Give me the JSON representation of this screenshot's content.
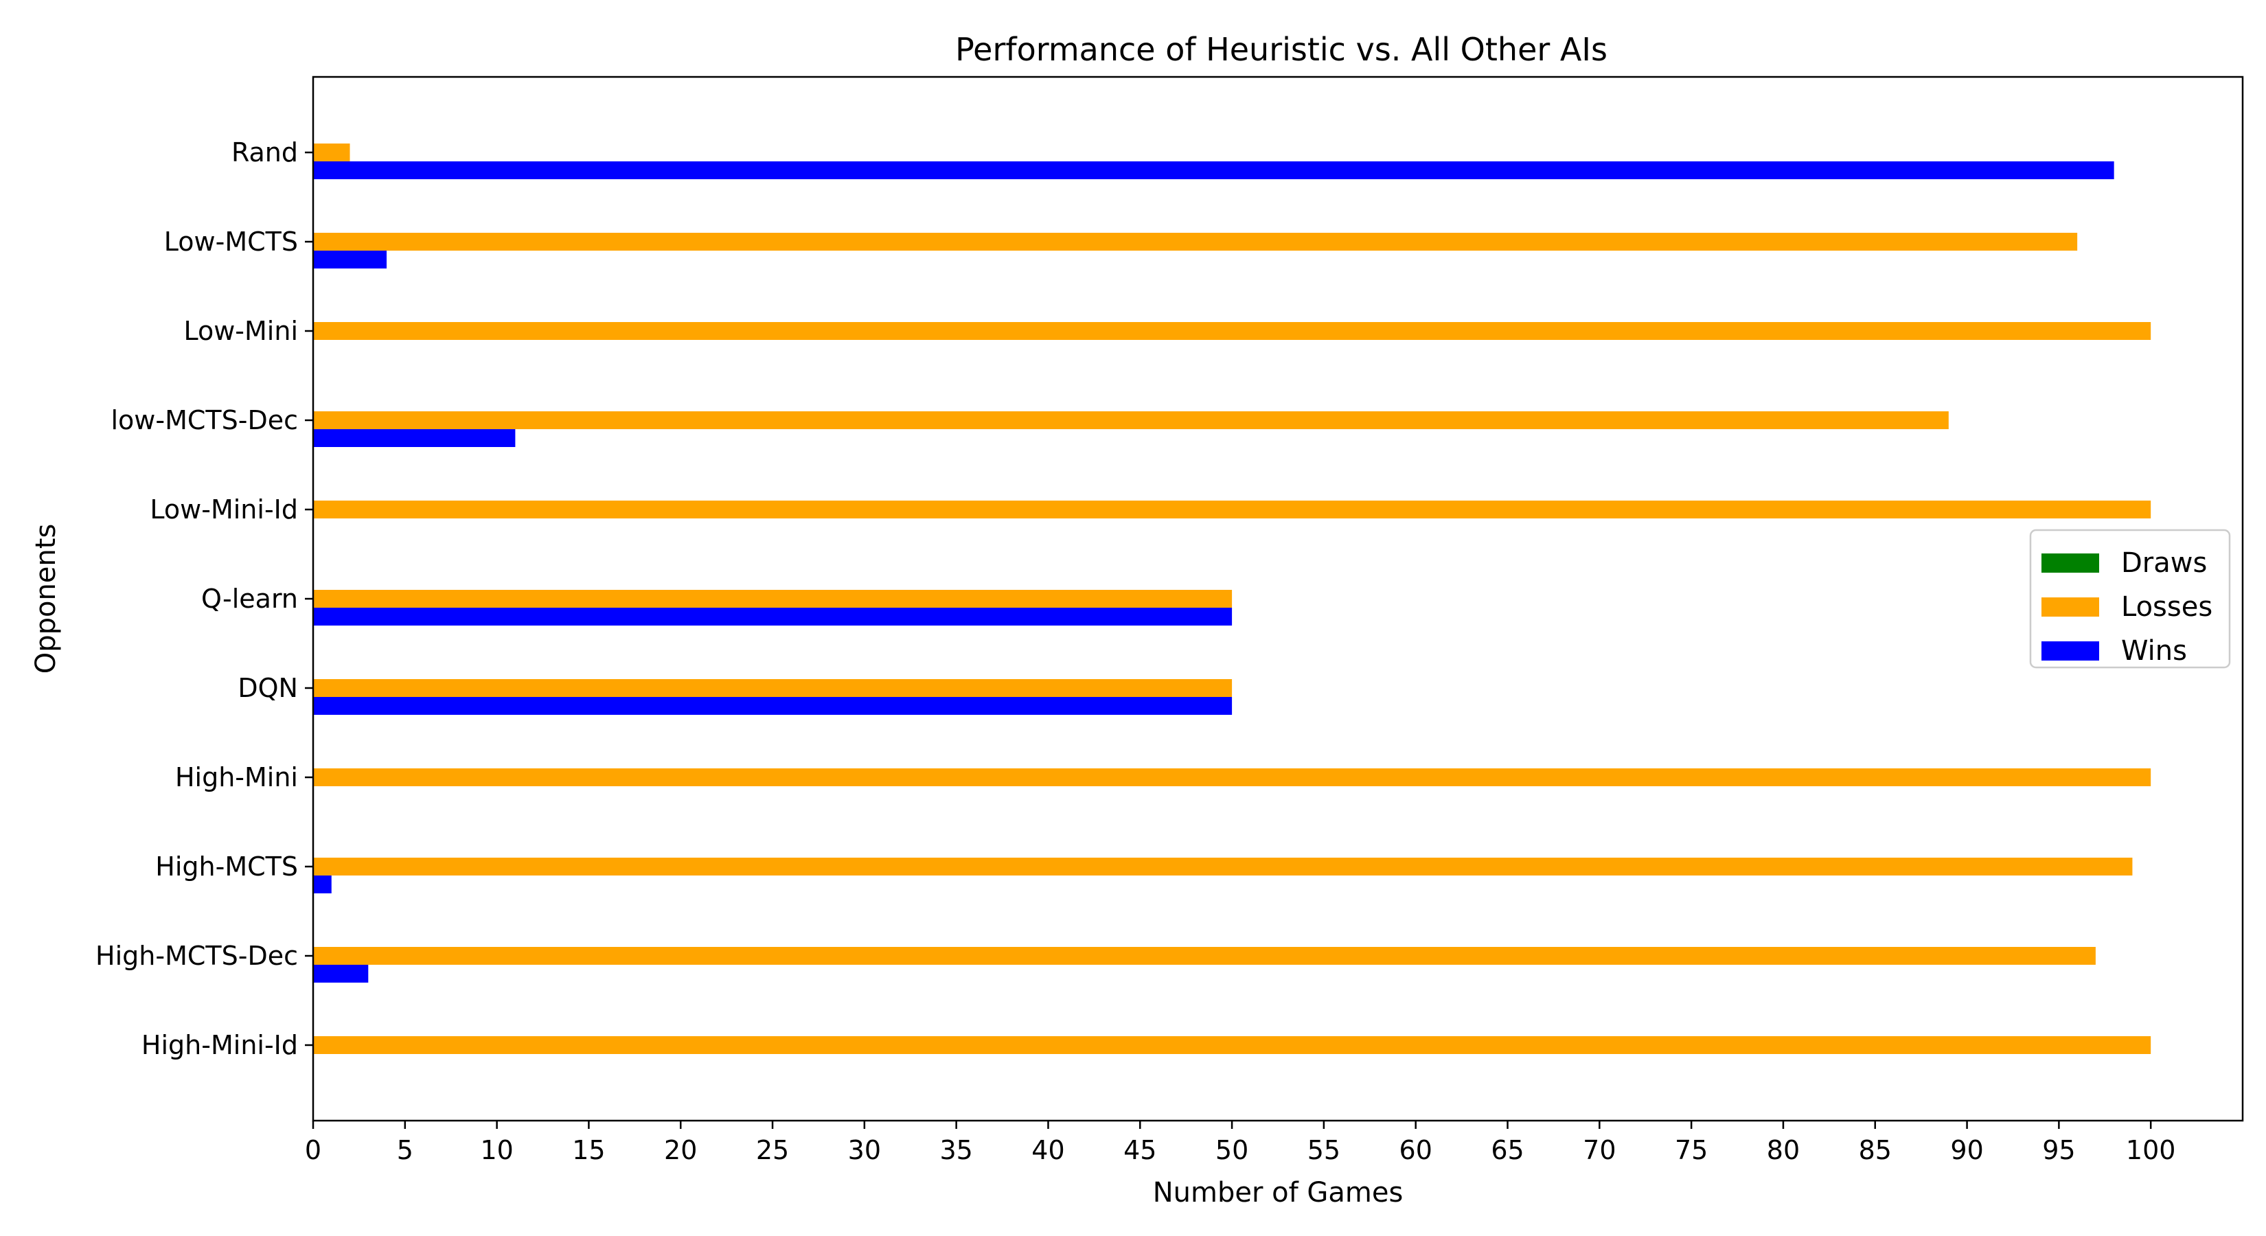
{
  "chart_data": {
    "type": "bar",
    "orientation": "horizontal",
    "title": "Performance of Heuristic vs. All Other AIs",
    "xlabel": "Number of Games",
    "ylabel": "Opponents",
    "categories": [
      "Rand",
      "Low-MCTS",
      "Low-Mini",
      "low-MCTS-Dec",
      "Low-Mini-Id",
      "Q-learn",
      "DQN",
      "High-Mini",
      "High-MCTS",
      "High-MCTS-Dec",
      "High-Mini-Id"
    ],
    "xlim": [
      0,
      105
    ],
    "xticks": [
      0,
      5,
      10,
      15,
      20,
      25,
      30,
      35,
      40,
      45,
      50,
      55,
      60,
      65,
      70,
      75,
      80,
      85,
      90,
      95,
      100
    ],
    "grid": false,
    "legend_position": "center-right",
    "series": [
      {
        "name": "Draws",
        "color": "#008000",
        "values": [
          0,
          0,
          0,
          0,
          0,
          0,
          0,
          0,
          0,
          0,
          0
        ]
      },
      {
        "name": "Losses",
        "color": "#FFA500",
        "values": [
          2,
          96,
          100,
          89,
          100,
          50,
          50,
          100,
          99,
          97,
          100
        ]
      },
      {
        "name": "Wins",
        "color": "#0000FF",
        "values": [
          98,
          4,
          0,
          11,
          0,
          50,
          50,
          0,
          1,
          3,
          0
        ]
      }
    ]
  }
}
